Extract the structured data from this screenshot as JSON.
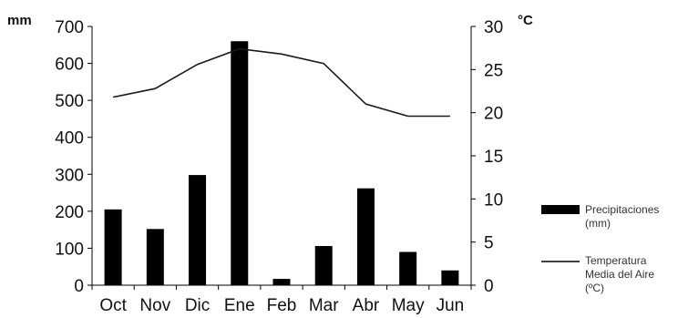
{
  "chart_data": {
    "type": "bar",
    "categories": [
      "Oct",
      "Nov",
      "Dic",
      "Ene",
      "Feb",
      "Mar",
      "Abr",
      "May",
      "Jun"
    ],
    "series": [
      {
        "name": "Precipitaciones (mm)",
        "type": "bar",
        "axis": "left",
        "color": "#000000",
        "values": [
          205,
          152,
          298,
          660,
          17,
          106,
          262,
          90,
          40
        ]
      },
      {
        "name": "Temperatura Media del Aire (ºC)",
        "type": "line",
        "axis": "right",
        "color": "#1a1a1a",
        "values": [
          21.8,
          22.8,
          25.6,
          27.4,
          26.8,
          25.7,
          21.0,
          19.6,
          19.6
        ]
      }
    ],
    "y_left": {
      "label": "mm",
      "ylim": [
        0,
        700
      ],
      "ticks": [
        "0",
        "100",
        "200",
        "300",
        "400",
        "500",
        "600",
        "700"
      ]
    },
    "y_right": {
      "label": "°C",
      "ylim": [
        0,
        30
      ],
      "ticks": [
        "0",
        "5",
        "10",
        "15",
        "20",
        "25",
        "30"
      ]
    },
    "legend_items": [
      {
        "lines": [
          "Precipitaciones",
          "(mm)"
        ],
        "symbol": "bar"
      },
      {
        "lines": [
          "Temperatura",
          "Media del Aire",
          "(ºC)"
        ],
        "symbol": "line"
      }
    ],
    "legend_position": "right",
    "grid": false
  }
}
